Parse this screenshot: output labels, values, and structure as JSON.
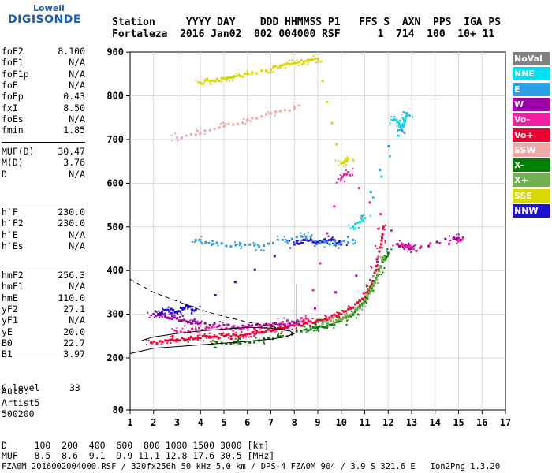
{
  "logo": {
    "line1": "Lowell",
    "line2": "DIGISONDE"
  },
  "header": {
    "row1": "Station     YYYY DAY    DDD HHMMSS P1   FFS S  AXN  PPS  IGA PS",
    "row2": "Fortaleza  2016 Jan02  002 004000 RSF      1  714  100  10+ 11"
  },
  "params_group1": [
    {
      "name": "foF2",
      "value": "8.100"
    },
    {
      "name": "foF1",
      "value": "N/A"
    },
    {
      "name": "foF1p",
      "value": "N/A"
    },
    {
      "name": "foE",
      "value": "N/A"
    },
    {
      "name": "foEp",
      "value": "0.43"
    },
    {
      "name": "fxI",
      "value": "8.50"
    },
    {
      "name": "foEs",
      "value": "N/A"
    },
    {
      "name": "fmin",
      "value": "1.85"
    }
  ],
  "params_group2": [
    {
      "name": "MUF(D)",
      "value": "30.47"
    },
    {
      "name": "M(D)",
      "value": "3.76"
    },
    {
      "name": "D",
      "value": "N/A"
    }
  ],
  "params_group3": [
    {
      "name": "h`F",
      "value": "230.0"
    },
    {
      "name": "h`F2",
      "value": "230.0"
    },
    {
      "name": "h`E",
      "value": "N/A"
    },
    {
      "name": "h`Es",
      "value": "N/A"
    }
  ],
  "params_group4": [
    {
      "name": "hmF2",
      "value": "256.3"
    },
    {
      "name": "hmF1",
      "value": "N/A"
    },
    {
      "name": "hmE",
      "value": "110.0"
    },
    {
      "name": "yF2",
      "value": "27.1"
    },
    {
      "name": "yF1",
      "value": "N/A"
    },
    {
      "name": "yE",
      "value": "20.0"
    },
    {
      "name": "B0",
      "value": "22.7"
    },
    {
      "name": "B1",
      "value": "3.97"
    }
  ],
  "clevel": {
    "name": "C-level",
    "value": "33"
  },
  "auto": {
    "l1": "Auto:",
    "l2": "Artist5",
    "l3": "500200"
  },
  "footer": {
    "d_row": "D     100  200  400  600  800 1000 1500 3000 [km]",
    "muf_row": "MUF   8.5  8.6  9.1  9.9 11.1 12.8 17.6 30.5 [MHz]",
    "file_row": "FZA0M_2016002004000.RSF / 320fx256h 50 kHz 5.0 km / DPS-4 FZA0M 904 / 3.9 S 321.6 E   Ion2Png 1.3.20"
  },
  "legend": [
    {
      "label": "NoVal",
      "color": "#808080"
    },
    {
      "label": "NNE",
      "color": "#00e0f0"
    },
    {
      "label": "E",
      "color": "#2aa0e8"
    },
    {
      "label": "W",
      "color": "#a000a8"
    },
    {
      "label": "Vo-",
      "color": "#f020a0"
    },
    {
      "label": "Vo+",
      "color": "#f00030"
    },
    {
      "label": "SSW",
      "color": "#f0a8a8"
    },
    {
      "label": "X-",
      "color": "#008000"
    },
    {
      "label": "X+",
      "color": "#70b050"
    },
    {
      "label": "SSE",
      "color": "#d8d800"
    },
    {
      "label": "NNW",
      "color": "#2010d0"
    }
  ],
  "chart_data": {
    "type": "scatter",
    "title": "",
    "xlabel": "",
    "ylabel": "",
    "x_ticks": [
      "1",
      "2",
      "3",
      "4",
      "5",
      "6",
      "7",
      "8",
      "9",
      "10",
      "11",
      "12",
      "13",
      "14",
      "15",
      "16",
      "17"
    ],
    "y_ticks": [
      "80",
      "200",
      "300",
      "400",
      "500",
      "600",
      "700",
      "800",
      "900"
    ],
    "xlim": [
      1,
      17
    ],
    "ylim": [
      80,
      900
    ],
    "grid": true,
    "legend_position": "right",
    "series": [
      {
        "name": "Vo+",
        "color": "#f00030",
        "points": [
          [
            1.9,
            235
          ],
          [
            2.5,
            240
          ],
          [
            3.0,
            242
          ],
          [
            3.5,
            244
          ],
          [
            4.0,
            246
          ],
          [
            4.5,
            248
          ],
          [
            5.0,
            250
          ],
          [
            5.5,
            252
          ],
          [
            6.0,
            255
          ],
          [
            6.5,
            258
          ],
          [
            7.0,
            262
          ],
          [
            7.5,
            268
          ],
          [
            8.0,
            274
          ],
          [
            8.5,
            280
          ],
          [
            9.0,
            286
          ],
          [
            9.5,
            292
          ],
          [
            10.0,
            300
          ],
          [
            10.5,
            315
          ],
          [
            11.0,
            340
          ],
          [
            11.3,
            370
          ],
          [
            11.5,
            410
          ],
          [
            11.7,
            460
          ],
          [
            11.8,
            500
          ]
        ]
      },
      {
        "name": "X-",
        "color": "#008000",
        "points": [
          [
            4.5,
            232
          ],
          [
            5.5,
            236
          ],
          [
            6.5,
            240
          ],
          [
            7.5,
            250
          ],
          [
            8.5,
            265
          ],
          [
            9.0,
            270
          ],
          [
            9.5,
            275
          ],
          [
            10.0,
            285
          ],
          [
            10.5,
            300
          ],
          [
            11.0,
            330
          ],
          [
            11.3,
            360
          ],
          [
            11.6,
            400
          ],
          [
            12.0,
            440
          ]
        ]
      },
      {
        "name": "X+",
        "color": "#70b050",
        "points": [
          [
            9.2,
            278
          ],
          [
            9.8,
            285
          ],
          [
            10.3,
            295
          ],
          [
            10.8,
            315
          ],
          [
            11.2,
            350
          ],
          [
            11.5,
            380
          ],
          [
            11.8,
            430
          ]
        ]
      },
      {
        "name": "W",
        "color": "#a000a8",
        "points": [
          [
            2.0,
            300
          ],
          [
            2.5,
            295
          ],
          [
            3.0,
            290
          ],
          [
            3.5,
            282
          ],
          [
            4.0,
            280
          ],
          [
            5.0,
            275
          ],
          [
            6.0,
            270
          ],
          [
            7.0,
            275
          ],
          [
            8.0,
            280
          ],
          [
            12.4,
            460
          ],
          [
            12.8,
            455
          ],
          [
            13.0,
            450
          ],
          [
            14.8,
            475
          ],
          [
            15.1,
            470
          ]
        ]
      },
      {
        "name": "Vo-",
        "color": "#f020a0",
        "points": [
          [
            3.0,
            260
          ],
          [
            3.8,
            265
          ],
          [
            4.5,
            270
          ],
          [
            5.5,
            268
          ],
          [
            6.5,
            272
          ],
          [
            7.5,
            282
          ],
          [
            8.5,
            290
          ],
          [
            10.0,
            610
          ],
          [
            10.3,
            625
          ],
          [
            12.6,
            460
          ],
          [
            13.0,
            452
          ],
          [
            15.0,
            468
          ]
        ]
      },
      {
        "name": "NNW",
        "color": "#2010d0",
        "points": [
          [
            2.2,
            300
          ],
          [
            2.6,
            310
          ],
          [
            3.0,
            305
          ],
          [
            3.4,
            320
          ],
          [
            3.8,
            310
          ],
          [
            8.0,
            460
          ],
          [
            8.5,
            470
          ],
          [
            9.0,
            465
          ],
          [
            9.5,
            470
          ],
          [
            10.0,
            460
          ]
        ]
      },
      {
        "name": "E",
        "color": "#2aa0e8",
        "points": [
          [
            3.8,
            470
          ],
          [
            4.5,
            460
          ],
          [
            5.5,
            458
          ],
          [
            6.5,
            455
          ],
          [
            7.5,
            470
          ],
          [
            8.5,
            478
          ],
          [
            9.5,
            460
          ],
          [
            10.5,
            470
          ],
          [
            12.4,
            740
          ],
          [
            12.6,
            720
          ],
          [
            12.8,
            760
          ]
        ]
      },
      {
        "name": "NNE",
        "color": "#00e0f0",
        "points": [
          [
            12.3,
            745
          ],
          [
            12.6,
            730
          ],
          [
            12.8,
            755
          ],
          [
            11.0,
            520
          ],
          [
            10.5,
            500
          ]
        ]
      },
      {
        "name": "SSE",
        "color": "#d8d800",
        "points": [
          [
            4.0,
            830
          ],
          [
            4.5,
            835
          ],
          [
            5.0,
            840
          ],
          [
            5.5,
            845
          ],
          [
            6.0,
            850
          ],
          [
            7.0,
            860
          ],
          [
            7.5,
            870
          ],
          [
            8.0,
            875
          ],
          [
            8.5,
            880
          ],
          [
            9.0,
            885
          ],
          [
            10.0,
            645
          ],
          [
            10.3,
            655
          ]
        ]
      },
      {
        "name": "SSW",
        "color": "#f0a8a8",
        "points": [
          [
            3.0,
            705
          ],
          [
            4.0,
            715
          ],
          [
            5.0,
            730
          ],
          [
            6.0,
            745
          ],
          [
            7.0,
            760
          ],
          [
            8.0,
            770
          ]
        ]
      }
    ],
    "profile_solid": [
      [
        1.0,
        210
      ],
      [
        2.0,
        222
      ],
      [
        3.0,
        226
      ],
      [
        4.0,
        230
      ],
      [
        5.0,
        234
      ],
      [
        6.0,
        238
      ],
      [
        7.0,
        243
      ],
      [
        7.6,
        248
      ],
      [
        8.0,
        256
      ],
      [
        7.8,
        262
      ],
      [
        7.0,
        268
      ],
      [
        6.0,
        270
      ],
      [
        5.0,
        266
      ],
      [
        4.0,
        262
      ],
      [
        3.0,
        256
      ],
      [
        2.0,
        248
      ],
      [
        1.5,
        240
      ]
    ],
    "profile_dashed": [
      [
        1.0,
        380
      ],
      [
        2.0,
        350
      ],
      [
        3.0,
        330
      ],
      [
        4.0,
        310
      ],
      [
        5.0,
        295
      ],
      [
        6.0,
        282
      ],
      [
        7.0,
        272
      ],
      [
        7.8,
        262
      ]
    ]
  }
}
